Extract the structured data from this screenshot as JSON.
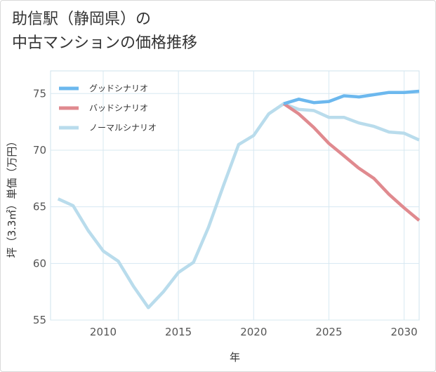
{
  "title": {
    "line1": "助信駅（静岡県）の",
    "line2": "中古マンションの価格推移"
  },
  "chart_data": {
    "type": "line",
    "xlabel": "年",
    "ylabel": "坪（3.3㎡）単価（万円）",
    "xlim": [
      2006.5,
      2031
    ],
    "ylim": [
      55,
      77
    ],
    "x_ticks": [
      2010,
      2015,
      2020,
      2025,
      2030
    ],
    "y_ticks": [
      55,
      60,
      65,
      70,
      75
    ],
    "grid": true,
    "legend_position": "top-left",
    "series": [
      {
        "name": "グッドシナリオ",
        "color": "#6cb8ee",
        "x": [
          2022,
          2023,
          2024,
          2025,
          2026,
          2027,
          2028,
          2029,
          2030,
          2031
        ],
        "y": [
          74.1,
          74.5,
          74.2,
          74.3,
          74.8,
          74.7,
          74.9,
          75.1,
          75.1,
          75.2
        ]
      },
      {
        "name": "バッドシナリオ",
        "color": "#e08a8f",
        "x": [
          2022,
          2023,
          2024,
          2025,
          2026,
          2027,
          2028,
          2029,
          2030,
          2031
        ],
        "y": [
          74.1,
          73.2,
          72.0,
          70.6,
          69.5,
          68.4,
          67.5,
          66.1,
          64.9,
          63.8
        ]
      },
      {
        "name": "ノーマルシナリオ",
        "color": "#b9dcec",
        "x": [
          2007,
          2008,
          2009,
          2010,
          2011,
          2012,
          2013,
          2014,
          2015,
          2016,
          2017,
          2018,
          2019,
          2020,
          2021,
          2022,
          2023,
          2024,
          2025,
          2026,
          2027,
          2028,
          2029,
          2030,
          2031
        ],
        "y": [
          65.7,
          65.1,
          62.9,
          61.1,
          60.2,
          58.0,
          56.1,
          57.5,
          59.2,
          60.1,
          63.2,
          66.9,
          70.5,
          71.3,
          73.2,
          74.1,
          73.6,
          73.5,
          72.9,
          72.9,
          72.4,
          72.1,
          71.6,
          71.5,
          70.9
        ]
      }
    ]
  }
}
